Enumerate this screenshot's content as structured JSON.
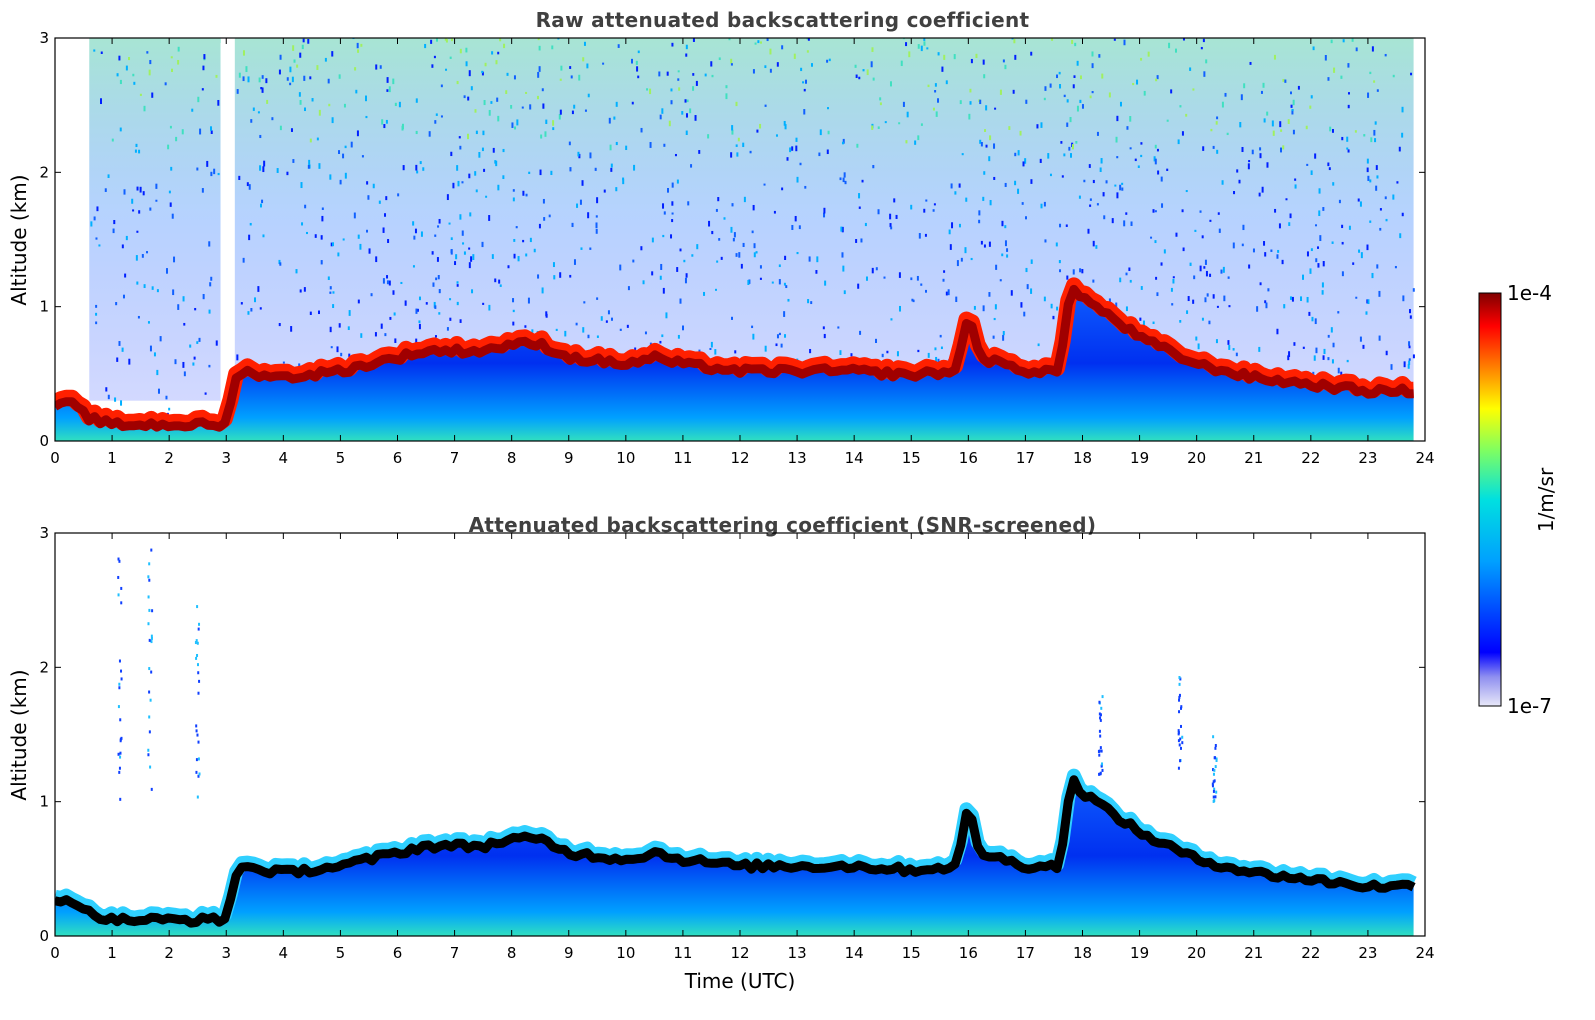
{
  "chart_data": [
    {
      "type": "heatmap",
      "title": "Raw attenuated backscattering coefficient",
      "xlabel": "",
      "ylabel": "Altitude (km)",
      "xlim": [
        0,
        24
      ],
      "ylim": [
        0,
        3
      ],
      "xticks": [
        0,
        1,
        2,
        3,
        4,
        5,
        6,
        7,
        8,
        9,
        10,
        11,
        12,
        13,
        14,
        15,
        16,
        17,
        18,
        19,
        20,
        21,
        22,
        23,
        24
      ],
      "yticks": [
        0,
        1,
        2,
        3
      ],
      "data_end_time": 23.8,
      "layer_top_km": {
        "time": [
          0,
          0.3,
          0.6,
          1,
          2,
          3,
          3.2,
          4,
          5,
          6,
          6.5,
          7,
          7.5,
          8,
          8.5,
          9,
          10,
          10.5,
          11,
          12,
          13,
          14,
          15,
          15.8,
          16,
          16.2,
          17,
          17.6,
          17.8,
          18,
          18.5,
          19,
          19.5,
          20,
          21,
          22,
          23,
          23.8
        ],
        "top": [
          0.3,
          0.3,
          0.2,
          0.15,
          0.15,
          0.15,
          0.55,
          0.5,
          0.55,
          0.65,
          0.7,
          0.7,
          0.7,
          0.75,
          0.75,
          0.65,
          0.6,
          0.65,
          0.6,
          0.55,
          0.55,
          0.55,
          0.52,
          0.55,
          1.0,
          0.65,
          0.55,
          0.55,
          1.2,
          1.1,
          0.95,
          0.8,
          0.7,
          0.6,
          0.5,
          0.45,
          0.4,
          0.4
        ]
      },
      "note_colormap": "jet, white below threshold"
    },
    {
      "type": "heatmap",
      "title": "Attenuated backscattering coefficient (SNR-screened)",
      "xlabel": "Time (UTC)",
      "ylabel": "Altitude (km)",
      "xlim": [
        0,
        24
      ],
      "ylim": [
        0,
        3
      ],
      "xticks": [
        0,
        1,
        2,
        3,
        4,
        5,
        6,
        7,
        8,
        9,
        10,
        11,
        12,
        13,
        14,
        15,
        16,
        17,
        18,
        19,
        20,
        21,
        22,
        23,
        24
      ],
      "yticks": [
        0,
        1,
        2,
        3
      ],
      "data_end_time": 23.8
    }
  ],
  "colorbar": {
    "label": "1/m/sr",
    "max_label": "1e-4",
    "min_label": "1e-7",
    "range": [
      1e-07,
      0.0001
    ],
    "scale": "log",
    "colors": [
      "#e8e8f8",
      "#2020ff",
      "#00b0ff",
      "#40e0c0",
      "#ffff00",
      "#ff8000",
      "#ff0000",
      "#800000"
    ]
  }
}
